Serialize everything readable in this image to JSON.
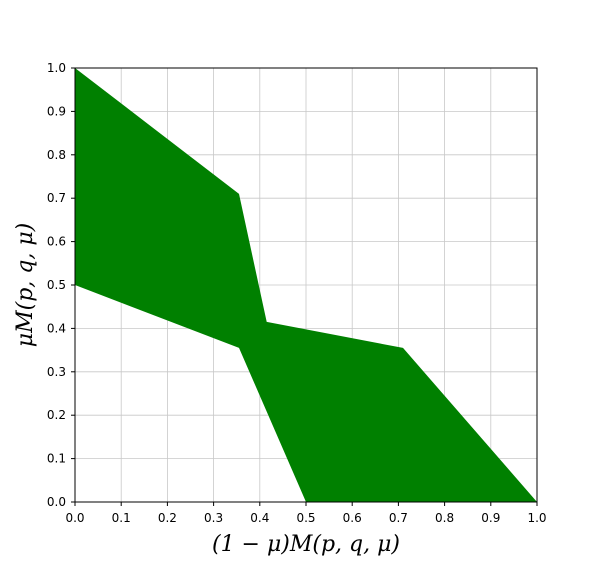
{
  "chart_data": {
    "type": "area",
    "title": "",
    "xlabel": "(1 − μ)M(p, q, μ)",
    "ylabel": "μM(p, q, μ)",
    "xlim": [
      0.0,
      1.0
    ],
    "ylim": [
      0.0,
      1.0
    ],
    "xticks": [
      "0.0",
      "0.1",
      "0.2",
      "0.3",
      "0.4",
      "0.5",
      "0.6",
      "0.7",
      "0.8",
      "0.9",
      "1.0"
    ],
    "yticks": [
      "0.0",
      "0.1",
      "0.2",
      "0.3",
      "0.4",
      "0.5",
      "0.6",
      "0.7",
      "0.8",
      "0.9",
      "1.0"
    ],
    "grid": true,
    "fill_color": "#008000",
    "region": {
      "x": [
        0.0,
        0.355,
        0.415,
        0.71,
        1.0,
        0.5,
        0.355,
        0.0
      ],
      "y": [
        1.0,
        0.71,
        0.415,
        0.355,
        0.0,
        0.0,
        0.355,
        0.5
      ]
    }
  }
}
